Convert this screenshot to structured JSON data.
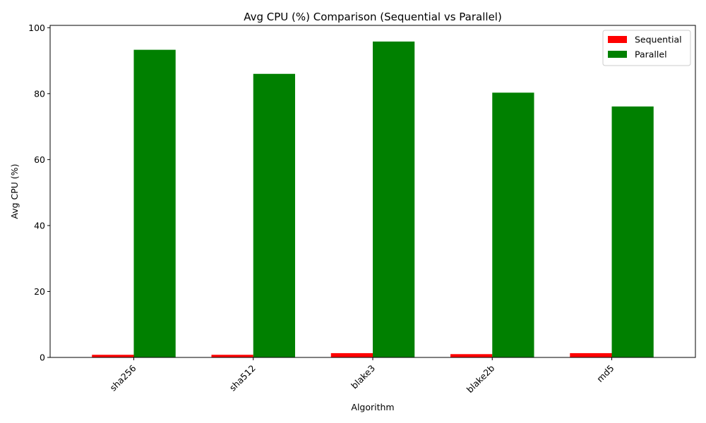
{
  "chart_data": {
    "type": "bar",
    "title": "Avg CPU (%) Comparison (Sequential vs Parallel)",
    "xlabel": "Algorithm",
    "ylabel": "Avg CPU (%)",
    "categories": [
      "sha256",
      "sha512",
      "blake3",
      "blake2b",
      "md5"
    ],
    "series": [
      {
        "name": "Sequential",
        "color": "#ff0000",
        "values": [
          0.8,
          0.8,
          1.3,
          1.0,
          1.3
        ]
      },
      {
        "name": "Parallel",
        "color": "#008000",
        "values": [
          93.3,
          86.0,
          95.8,
          80.3,
          76.1
        ]
      }
    ],
    "ylim": [
      0,
      100.7
    ],
    "yticks": [
      0,
      20,
      40,
      60,
      80,
      100
    ],
    "grid": false,
    "legend_position": "top-right",
    "xtick_rotation": 45
  }
}
